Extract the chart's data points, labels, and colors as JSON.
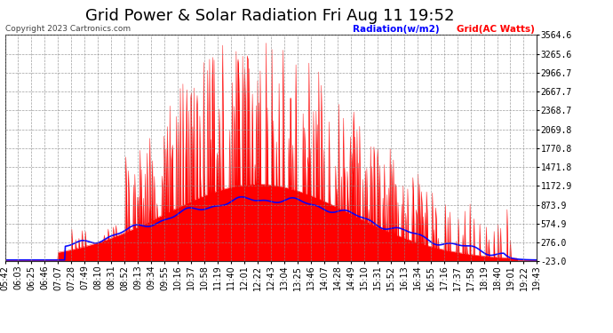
{
  "title": "Grid Power & Solar Radiation Fri Aug 11 19:52",
  "copyright": "Copyright 2023 Cartronics.com",
  "legend_radiation": "Radiation(w/m2)",
  "legend_grid": "Grid(AC Watts)",
  "yticks": [
    3564.6,
    3265.6,
    2966.7,
    2667.7,
    2368.7,
    2069.8,
    1770.8,
    1471.8,
    1172.9,
    873.9,
    574.9,
    276.0,
    -23.0
  ],
  "ymin": -23.0,
  "ymax": 3564.6,
  "bg_color": "#ffffff",
  "plot_bg_color": "#ffffff",
  "grid_color": "#aaaaaa",
  "radiation_color": "#0000ff",
  "grid_ac_color": "#ff0000",
  "title_fontsize": 13,
  "tick_fontsize": 7,
  "xtick_labels": [
    "05:42",
    "06:03",
    "06:25",
    "06:46",
    "07:07",
    "07:28",
    "07:49",
    "08:10",
    "08:31",
    "08:52",
    "09:13",
    "09:34",
    "09:55",
    "10:16",
    "10:37",
    "10:58",
    "11:19",
    "11:40",
    "12:01",
    "12:22",
    "12:43",
    "13:04",
    "13:25",
    "13:46",
    "14:07",
    "14:28",
    "14:49",
    "15:10",
    "15:31",
    "15:52",
    "16:13",
    "16:34",
    "16:55",
    "17:16",
    "17:37",
    "17:58",
    "18:19",
    "18:40",
    "19:01",
    "19:22",
    "19:43"
  ]
}
